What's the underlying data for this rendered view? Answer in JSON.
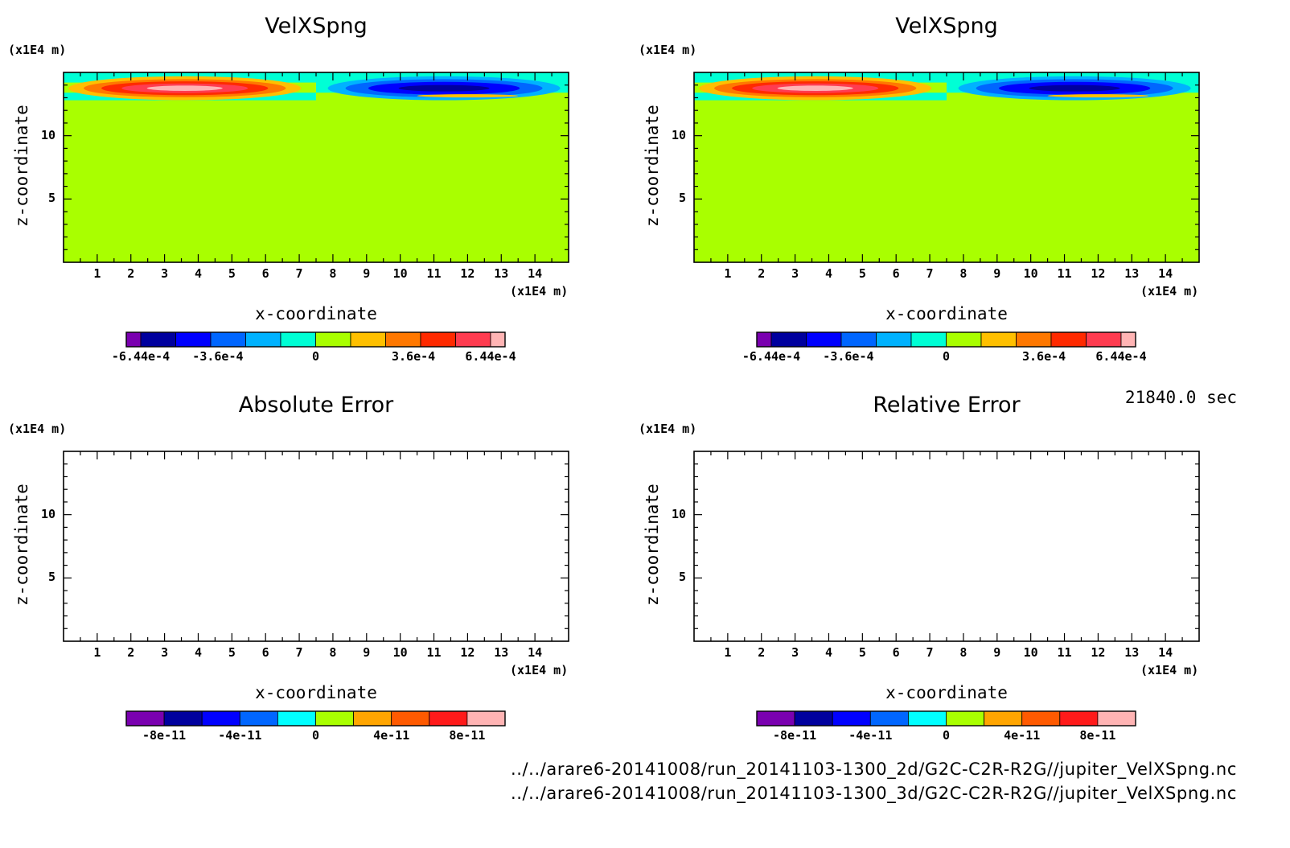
{
  "timestamp": "21840.0 sec",
  "files": [
    "../../arare6-20141008/run_20141103-1300_2d/G2C-C2R-R2G//jupiter_VelXSpng.nc",
    "../../arare6-20141008/run_20141103-1300_3d/G2C-C2R-R2G//jupiter_VelXSpng.nc"
  ],
  "chart_data": [
    {
      "type": "heatmap",
      "title": "VelXSpng",
      "xlabel": "x-coordinate",
      "ylabel": "z-coordinate",
      "x_unit": "(x1E4 m)",
      "y_unit": "(x1E4 m)",
      "xlim": [
        0,
        15
      ],
      "ylim": [
        0,
        15
      ],
      "x_ticks": [
        "1",
        "2",
        "3",
        "4",
        "5",
        "6",
        "7",
        "8",
        "9",
        "10",
        "11",
        "12",
        "13",
        "14"
      ],
      "y_ticks": [
        "5",
        "10"
      ],
      "field": "sponge-layer x-velocity: positive jet (x 0-7.5), negative jet (x 7.5-15), centered z~13.8, background 0",
      "colorbar": {
        "colors": [
          "#7a00b0",
          "#00009e",
          "#0000ff",
          "#0066ff",
          "#00b2ff",
          "#00ffd5",
          "#a9ff00",
          "#ffc000",
          "#ff7800",
          "#ff2a00",
          "#ff3c50",
          "#ffb4b4"
        ],
        "tick_labels": [
          "-6.44e-4",
          "-3.6e-4",
          "0",
          "3.6e-4",
          "6.44e-4"
        ],
        "range": [
          -0.000644,
          0.000644
        ]
      }
    },
    {
      "type": "heatmap",
      "title": "VelXSpng",
      "xlabel": "x-coordinate",
      "ylabel": "z-coordinate",
      "x_unit": "(x1E4 m)",
      "y_unit": "(x1E4 m)",
      "xlim": [
        0,
        15
      ],
      "ylim": [
        0,
        15
      ],
      "x_ticks": [
        "1",
        "2",
        "3",
        "4",
        "5",
        "6",
        "7",
        "8",
        "9",
        "10",
        "11",
        "12",
        "13",
        "14"
      ],
      "y_ticks": [
        "5",
        "10"
      ],
      "field": "sponge-layer x-velocity: positive jet (x 0-7.5), negative jet (x 7.5-15), centered z~13.8, background 0",
      "colorbar": {
        "colors": [
          "#7a00b0",
          "#00009e",
          "#0000ff",
          "#0066ff",
          "#00b2ff",
          "#00ffd5",
          "#a9ff00",
          "#ffc000",
          "#ff7800",
          "#ff2a00",
          "#ff3c50",
          "#ffb4b4"
        ],
        "tick_labels": [
          "-6.44e-4",
          "-3.6e-4",
          "0",
          "3.6e-4",
          "6.44e-4"
        ],
        "range": [
          -0.000644,
          0.000644
        ]
      }
    },
    {
      "type": "heatmap",
      "title": "Absolute Error",
      "xlabel": "x-coordinate",
      "ylabel": "z-coordinate",
      "x_unit": "(x1E4 m)",
      "y_unit": "(x1E4 m)",
      "xlim": [
        0,
        15
      ],
      "ylim": [
        0,
        15
      ],
      "x_ticks": [
        "1",
        "2",
        "3",
        "4",
        "5",
        "6",
        "7",
        "8",
        "9",
        "10",
        "11",
        "12",
        "13",
        "14"
      ],
      "y_ticks": [
        "5",
        "10"
      ],
      "field": "empty",
      "colorbar": {
        "colors": [
          "#7a00b0",
          "#00009e",
          "#0000ff",
          "#0066ff",
          "#00ffff",
          "#a9ff00",
          "#ffa500",
          "#ff5a00",
          "#ff1a1a",
          "#ffb4b4"
        ],
        "tick_labels": [
          "-8e-11",
          "-4e-11",
          "0",
          "4e-11",
          "8e-11"
        ],
        "range": [
          -1e-10,
          1e-10
        ]
      }
    },
    {
      "type": "heatmap",
      "title": "Relative Error",
      "xlabel": "x-coordinate",
      "ylabel": "z-coordinate",
      "x_unit": "(x1E4 m)",
      "y_unit": "(x1E4 m)",
      "xlim": [
        0,
        15
      ],
      "ylim": [
        0,
        15
      ],
      "x_ticks": [
        "1",
        "2",
        "3",
        "4",
        "5",
        "6",
        "7",
        "8",
        "9",
        "10",
        "11",
        "12",
        "13",
        "14"
      ],
      "y_ticks": [
        "5",
        "10"
      ],
      "field": "empty",
      "colorbar": {
        "colors": [
          "#7a00b0",
          "#00009e",
          "#0000ff",
          "#0066ff",
          "#00ffff",
          "#a9ff00",
          "#ffa500",
          "#ff5a00",
          "#ff1a1a",
          "#ffb4b4"
        ],
        "tick_labels": [
          "-8e-11",
          "-4e-11",
          "0",
          "4e-11",
          "8e-11"
        ],
        "range": [
          -1e-10,
          1e-10
        ]
      }
    }
  ]
}
